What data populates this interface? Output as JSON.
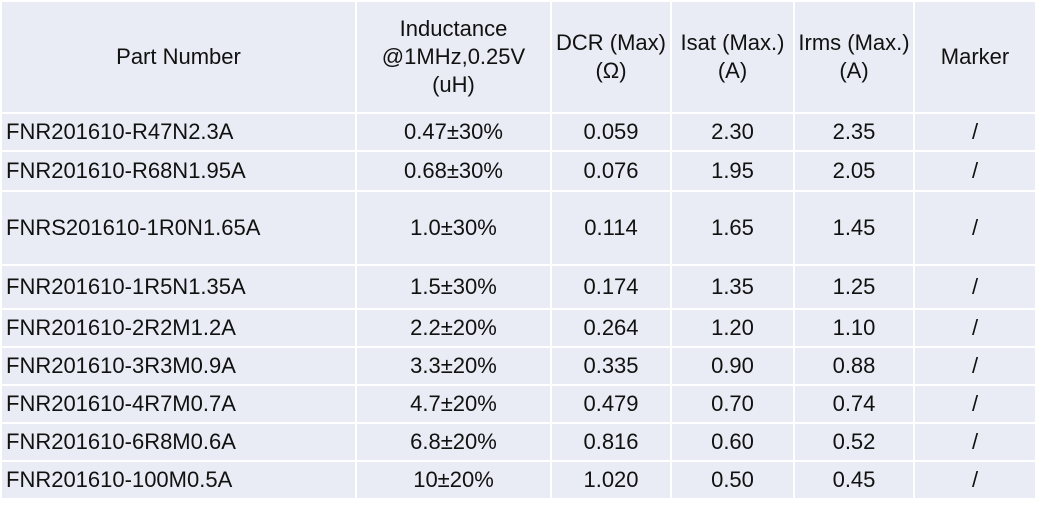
{
  "table": {
    "headers": [
      "Part Number",
      "Inductance @1MHz,0.25V (uH)",
      "DCR (Max) (Ω)",
      "Isat (Max.) (A)",
      "Irms (Max.) (A)",
      "Marker"
    ],
    "rows": [
      [
        "FNR201610-R47N2.3A",
        "0.47±30%",
        "0.059",
        "2.30",
        "2.35",
        "/"
      ],
      [
        "FNR201610-R68N1.95A",
        "0.68±30%",
        "0.076",
        "1.95",
        "2.05",
        "/"
      ],
      [
        "FNRS201610-1R0N1.65A",
        "1.0±30%",
        "0.114",
        "1.65",
        "1.45",
        "/"
      ],
      [
        "FNR201610-1R5N1.35A",
        "1.5±30%",
        "0.174",
        "1.35",
        "1.25",
        "/"
      ],
      [
        "FNR201610-2R2M1.2A",
        "2.2±20%",
        "0.264",
        "1.20",
        "1.10",
        "/"
      ],
      [
        "FNR201610-3R3M0.9A",
        "3.3±20%",
        "0.335",
        "0.90",
        "0.88",
        "/"
      ],
      [
        "FNR201610-4R7M0.7A",
        "4.7±20%",
        "0.479",
        "0.70",
        "0.74",
        "/"
      ],
      [
        "FNR201610-6R8M0.6A",
        "6.8±20%",
        "0.816",
        "0.60",
        "0.52",
        "/"
      ],
      [
        "FNR201610-100M0.5A",
        "10±20%",
        "1.020",
        "0.50",
        "0.45",
        "/"
      ]
    ]
  },
  "colors": {
    "cell_background": "#e9ecf4",
    "grid": "#ffffff",
    "text": "#111111"
  }
}
